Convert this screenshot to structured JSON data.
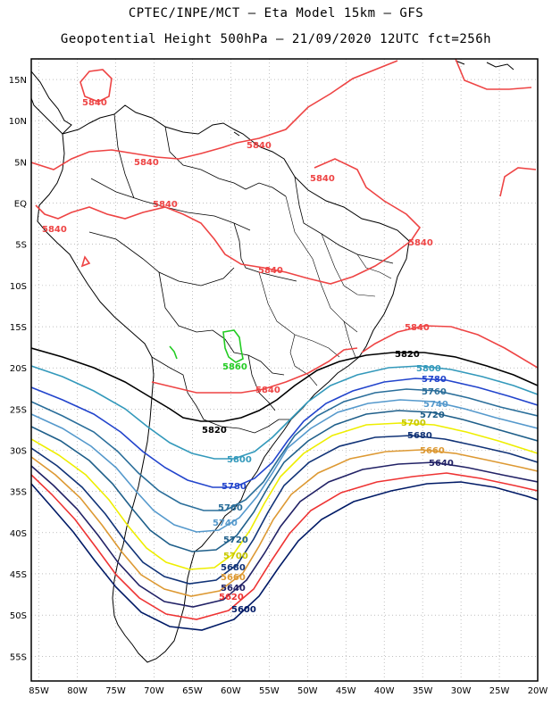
{
  "title": {
    "line1": "CPTEC/INPE/MCT —  Eta Model 15km — GFS",
    "line2": "Geopotential Height 500hPa — 21/09/2020 12UTC fct=256h"
  },
  "axes": {
    "lat_ticks": [
      "15N",
      "10N",
      "5N",
      "EQ",
      "5S",
      "10S",
      "15S",
      "20S",
      "25S",
      "30S",
      "35S",
      "40S",
      "45S",
      "50S",
      "55S"
    ],
    "lat_values": [
      15,
      10,
      5,
      0,
      -5,
      -10,
      -15,
      -20,
      -25,
      -30,
      -35,
      -40,
      -45,
      -50,
      -55
    ],
    "lon_ticks": [
      "85W",
      "80W",
      "75W",
      "70W",
      "65W",
      "60W",
      "55W",
      "50W",
      "45W",
      "40W",
      "35W",
      "30W",
      "25W",
      "20W"
    ],
    "lon_values": [
      -85,
      -80,
      -75,
      -70,
      -65,
      -60,
      -55,
      -50,
      -45,
      -40,
      -35,
      -30,
      -25,
      -20
    ],
    "lon_range": [
      -86,
      -20
    ],
    "lat_range": [
      17.5,
      -58
    ],
    "grid": true
  },
  "contours": [
    {
      "value": 5860,
      "label": "5860",
      "color": "#22cc22"
    },
    {
      "value": 5840,
      "label": "5840",
      "color": "#ee4444"
    },
    {
      "value": 5820,
      "label": "5820",
      "color": "#000000"
    },
    {
      "value": 5800,
      "label": "5800",
      "color": "#3399bb"
    },
    {
      "value": 5780,
      "label": "5780",
      "color": "#2244cc"
    },
    {
      "value": 5760,
      "label": "5760",
      "color": "#2a6e9a"
    },
    {
      "value": 5740,
      "label": "5740",
      "color": "#5599cc"
    },
    {
      "value": 5720,
      "label": "5720",
      "color": "#1f5f8a"
    },
    {
      "value": 5700,
      "label": "5700",
      "color": "#eeee00"
    },
    {
      "value": 5680,
      "label": "5680",
      "color": "#113377"
    },
    {
      "value": 5660,
      "label": "5660",
      "color": "#dd9933"
    },
    {
      "value": 5640,
      "label": "5640",
      "color": "#222266"
    },
    {
      "value": 5620,
      "label": "5620",
      "color": "#ee3333"
    },
    {
      "value": 5600,
      "label": "5600",
      "color": "#001a66"
    }
  ]
}
